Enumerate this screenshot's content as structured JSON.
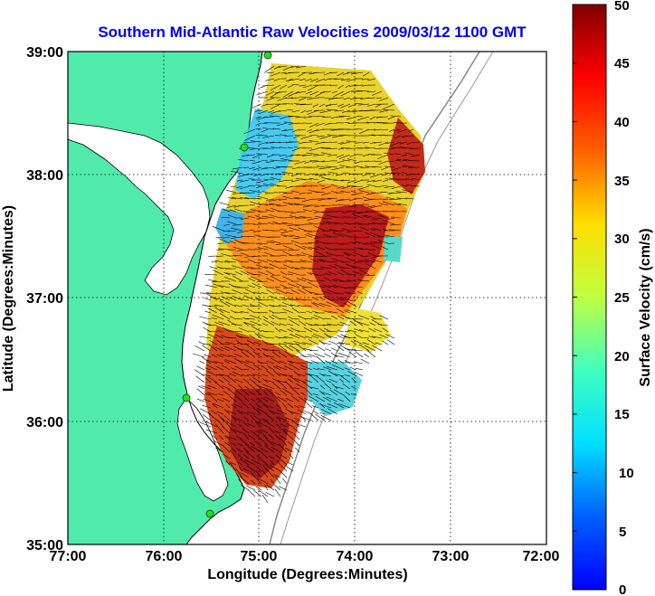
{
  "title": "Southern Mid-Atlantic Raw Velocities 2009/03/12 1100 GMT",
  "xaxis": {
    "label": "Longitude (Degrees:Minutes)",
    "ticks": [
      "77:00",
      "76:00",
      "75:00",
      "74:00",
      "73:00",
      "72:00"
    ]
  },
  "yaxis": {
    "label": "Latitude (Degrees:Minutes)",
    "ticks": [
      "39:00",
      "38:00",
      "37:00",
      "36:00",
      "35:00"
    ]
  },
  "colorbar": {
    "label": "Surface Velocity (cm/s)",
    "ticks": [
      "50",
      "45",
      "40",
      "35",
      "30",
      "25",
      "20",
      "15",
      "10",
      "5",
      "0"
    ],
    "min": 0,
    "max": 50,
    "colormap": "jet"
  },
  "map": {
    "lon_range": [
      -77,
      -72
    ],
    "lat_range": [
      35,
      39
    ],
    "land_color": "#50ebaa",
    "grid": "dotted",
    "station_marker_color": "#22dd22",
    "vector_color": "#000000"
  }
}
